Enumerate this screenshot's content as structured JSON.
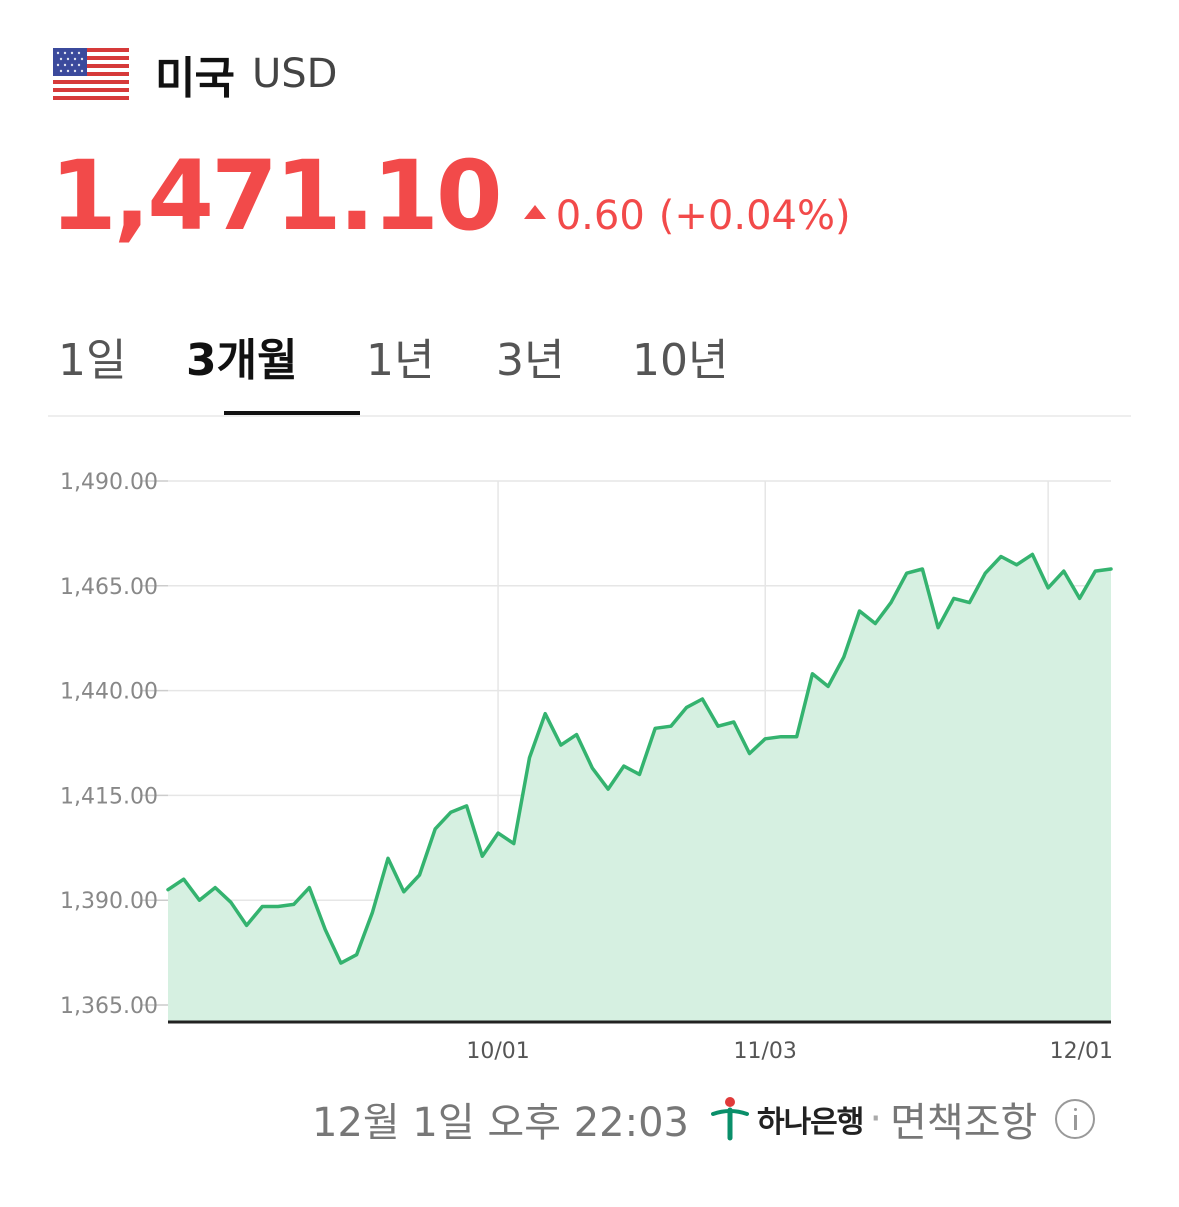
{
  "header": {
    "country": "미국",
    "currency": "USD",
    "flag_icon": "us-flag-icon"
  },
  "quote": {
    "price": "1,471.10",
    "change": "0.60",
    "change_pct": "(+0.04%)",
    "direction_icon": "up-triangle-icon",
    "color": "#f24a4a"
  },
  "tabs": [
    {
      "label": "1일",
      "active": false
    },
    {
      "label": "3개월",
      "active": true
    },
    {
      "label": "1년",
      "active": false
    },
    {
      "label": "3년",
      "active": false
    },
    {
      "label": "10년",
      "active": false
    }
  ],
  "chart_data": {
    "type": "area",
    "title": "",
    "xlabel": "",
    "ylabel": "",
    "ylim": [
      1365,
      1490
    ],
    "yticks": [
      "1,490.00",
      "1,465.00",
      "1,440.00",
      "1,415.00",
      "1,390.00",
      "1,365.00"
    ],
    "ytick_values": [
      1490,
      1465,
      1440,
      1415,
      1390,
      1365
    ],
    "xticks": [
      "10/01",
      "11/03",
      "12/01"
    ],
    "xtick_indices": [
      21,
      38,
      56
    ],
    "grid": true,
    "line_color": "#34b36f",
    "fill_color": "#d6f0e1",
    "series": [
      {
        "values": [
          1392.5,
          1395,
          1390,
          1393,
          1389.5,
          1384,
          1388.5,
          1388.5,
          1389,
          1393,
          1383,
          1375,
          1377,
          1387,
          1400,
          1392,
          1396,
          1407,
          1411,
          1412.5,
          1400.5,
          1406,
          1403.5,
          1424,
          1434.5,
          1427,
          1429.5,
          1421.5,
          1416.5,
          1422,
          1420,
          1431,
          1431.5,
          1436,
          1438,
          1431.5,
          1432.5,
          1425,
          1428.5,
          1429,
          1429,
          1444,
          1441,
          1448,
          1459,
          1456,
          1461,
          1468,
          1469,
          1455,
          1462,
          1461,
          1468,
          1472,
          1470,
          1472.5,
          1464.5,
          1468.5,
          1462,
          1468.5,
          1469
        ]
      }
    ]
  },
  "footer": {
    "timestamp": "12월 1일 오후 22:03",
    "bank": "하나은행",
    "separator": "·",
    "disclaimer": "면책조항",
    "info_icon": "info-icon"
  }
}
